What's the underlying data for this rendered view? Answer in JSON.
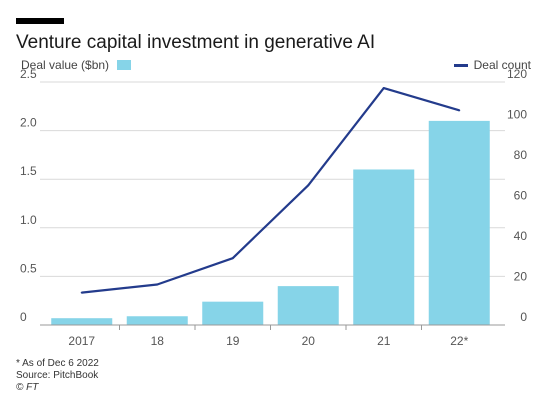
{
  "header": {
    "title": "Venture capital investment in generative AI"
  },
  "legend": {
    "bar_label": "Deal value ($bn)",
    "line_label": "Deal count"
  },
  "colors": {
    "bar": "#86d4e8",
    "line": "#233b8c",
    "gridline": "#d9d9d9",
    "axis_text": "#555555"
  },
  "chart_data": {
    "type": "bar",
    "categories": [
      "2017",
      "18",
      "19",
      "20",
      "21",
      "22*"
    ],
    "series": [
      {
        "name": "Deal value ($bn)",
        "type": "bar",
        "axis": "left",
        "values": [
          0.07,
          0.09,
          0.24,
          0.4,
          1.6,
          2.1
        ]
      },
      {
        "name": "Deal count",
        "type": "line",
        "axis": "right",
        "values": [
          16,
          20,
          33,
          69,
          117,
          106
        ]
      }
    ],
    "ylim_left": [
      0,
      2.5
    ],
    "yticks_left": [
      "0",
      "0.5",
      "1.0",
      "1.5",
      "2.0",
      "2.5"
    ],
    "ylim_right": [
      0,
      120
    ],
    "yticks_right": [
      "0",
      "20",
      "40",
      "60",
      "80",
      "100",
      "120"
    ],
    "grid": true
  },
  "footer": {
    "note": "* As of Dec 6 2022",
    "source": "Source: PitchBook",
    "credit": "© FT"
  }
}
